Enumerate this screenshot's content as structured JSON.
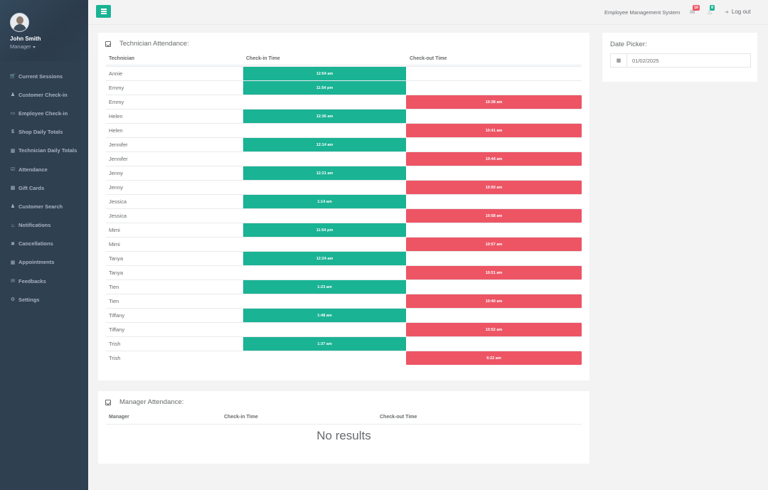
{
  "profile": {
    "name": "John Smith",
    "role": "Manager"
  },
  "sidebar": {
    "items": [
      {
        "label": "Current Sessions",
        "icon": "cart-icon"
      },
      {
        "label": "Customer Check-in",
        "icon": "user-icon"
      },
      {
        "label": "Employee Check-in",
        "icon": "laptop-icon"
      },
      {
        "label": "Shop Daily Totals",
        "icon": "dollar-icon"
      },
      {
        "label": "Technician Daily Totals",
        "icon": "table-icon"
      },
      {
        "label": "Attendance",
        "icon": "checkbox-icon"
      },
      {
        "label": "Gift Cards",
        "icon": "gift-icon"
      },
      {
        "label": "Customer Search",
        "icon": "user-search-icon"
      },
      {
        "label": "Notifications",
        "icon": "bell-icon"
      },
      {
        "label": "Cancellations",
        "icon": "close-icon"
      },
      {
        "label": "Appointments",
        "icon": "calendar-icon"
      },
      {
        "label": "Feedbacks",
        "icon": "comments-icon"
      },
      {
        "label": "Settings",
        "icon": "gear-icon"
      }
    ]
  },
  "topbar": {
    "system_title": "Employee Management System",
    "messages_count": "16",
    "alerts_count": "8",
    "logout_label": "Log out",
    "colors": {
      "accent": "#1ab394",
      "danger": "#ed5565"
    }
  },
  "technician_panel": {
    "title": "Technician Attendance:",
    "columns": [
      "Technician",
      "Check-in Time",
      "Check-out Time"
    ],
    "rows": [
      {
        "name": "Annie",
        "in": "12:54 am",
        "out": ""
      },
      {
        "name": "Emmy",
        "in": "11:54 pm",
        "out": ""
      },
      {
        "name": "Emmy",
        "in": "",
        "out": "10:38 am"
      },
      {
        "name": "Helen",
        "in": "12:36 am",
        "out": ""
      },
      {
        "name": "Helen",
        "in": "",
        "out": "10:41 am"
      },
      {
        "name": "Jennifer",
        "in": "12:14 am",
        "out": ""
      },
      {
        "name": "Jennifer",
        "in": "",
        "out": "10:44 am"
      },
      {
        "name": "Jenny",
        "in": "12:21 am",
        "out": ""
      },
      {
        "name": "Jenny",
        "in": "",
        "out": "10:50 am"
      },
      {
        "name": "Jessica",
        "in": "1:14 am",
        "out": ""
      },
      {
        "name": "Jessica",
        "in": "",
        "out": "10:58 am"
      },
      {
        "name": "Mimi",
        "in": "11:54 pm",
        "out": ""
      },
      {
        "name": "Mimi",
        "in": "",
        "out": "10:57 am"
      },
      {
        "name": "Tanya",
        "in": "12:24 am",
        "out": ""
      },
      {
        "name": "Tanya",
        "in": "",
        "out": "10:51 am"
      },
      {
        "name": "Tien",
        "in": "1:23 am",
        "out": ""
      },
      {
        "name": "Tien",
        "in": "",
        "out": "10:40 am"
      },
      {
        "name": "Tiffany",
        "in": "1:48 am",
        "out": ""
      },
      {
        "name": "Tiffany",
        "in": "",
        "out": "10:52 am"
      },
      {
        "name": "Trish",
        "in": "1:37 am",
        "out": ""
      },
      {
        "name": "Trish",
        "in": "",
        "out": "6:22 am"
      }
    ]
  },
  "manager_panel": {
    "title": "Manager Attendance:",
    "columns": [
      "Manager",
      "Check-in Time",
      "Check-out Time"
    ],
    "empty_text": "No results"
  },
  "date_picker": {
    "label": "Date Picker:",
    "value": "01/02/2025"
  }
}
